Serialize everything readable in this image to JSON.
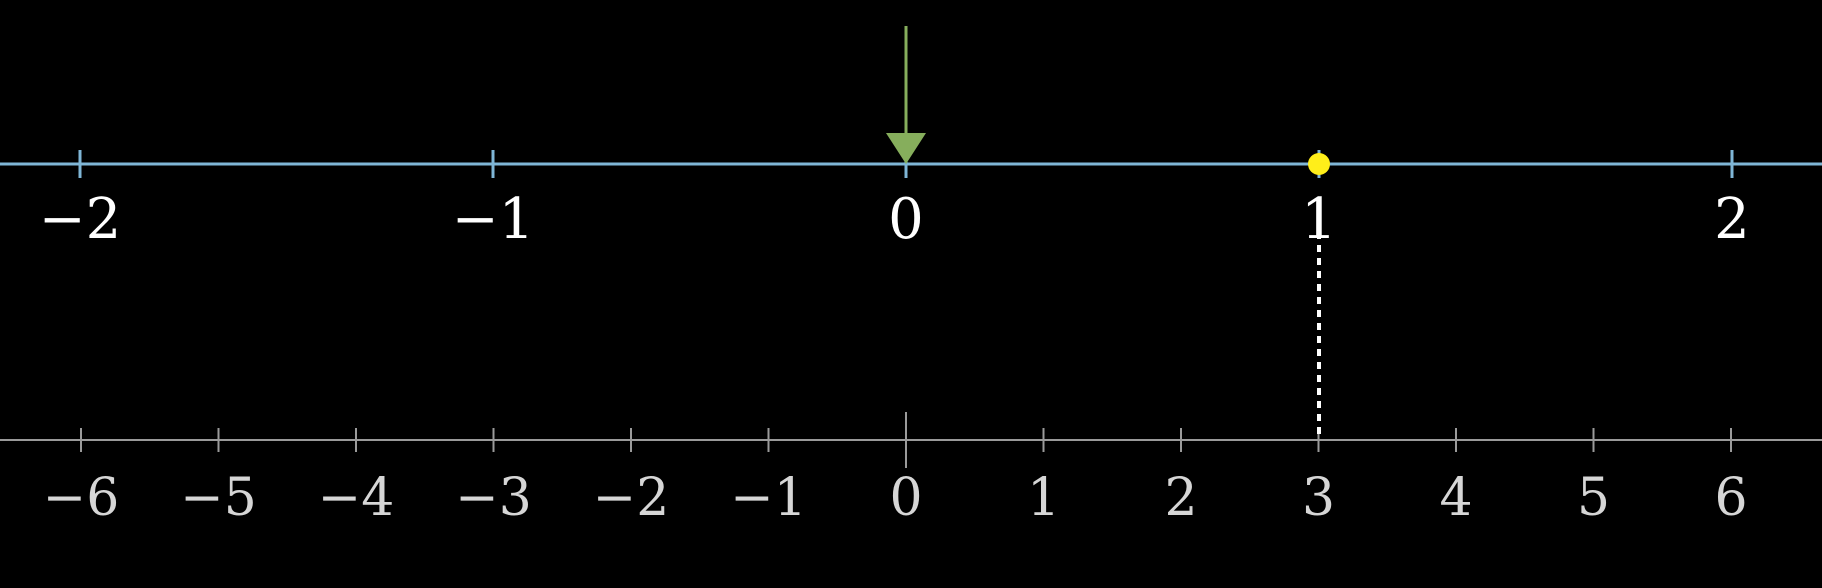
{
  "colors": {
    "background": "#000000",
    "top_axis": "#7fb6d6",
    "bottom_axis": "#9a9a9a",
    "top_labels": "#ffffff",
    "bottom_labels": "#d6d6d6",
    "arrow": "#86ae5c",
    "dot": "#ffee1a",
    "dashed_line": "#ffffff"
  },
  "top_number_line": {
    "ticks": [
      -2,
      -1,
      0,
      1,
      2
    ],
    "tick_labels": [
      "−2",
      "−1",
      "0",
      "1",
      "2"
    ]
  },
  "bottom_number_line": {
    "ticks": [
      -6,
      -5,
      -4,
      -3,
      -2,
      -1,
      0,
      1,
      2,
      3,
      4,
      5,
      6
    ],
    "tick_labels": [
      "−6",
      "−5",
      "−4",
      "−3",
      "−2",
      "−1",
      "0",
      "1",
      "2",
      "3",
      "4",
      "5",
      "6"
    ]
  },
  "arrow": {
    "icon": "down-arrow-icon",
    "points_to": 0
  },
  "point": {
    "top_value": 1,
    "bottom_value": 3
  }
}
